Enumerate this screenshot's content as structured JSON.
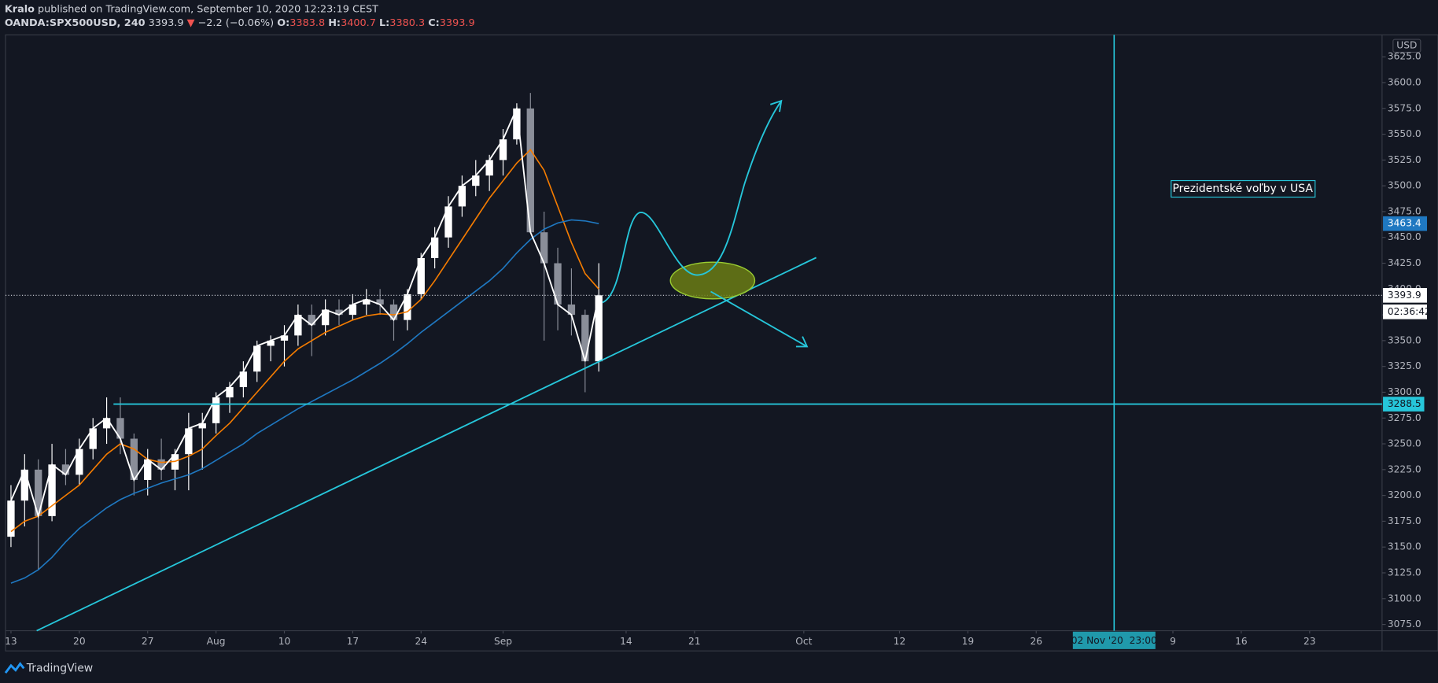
{
  "header": {
    "author": "Kralo",
    "published": "published on TradingView.com, September 10, 2020 12:23:19 CEST",
    "symbol": "OANDA:SPX500USD, 240",
    "last": "3393.9",
    "arrow": "▼",
    "change": "−2.2 (−0.06%)",
    "ohlc": [
      {
        "label": "O:",
        "value": "3383.8"
      },
      {
        "label": "H:",
        "value": "3400.7"
      },
      {
        "label": "L:",
        "value": "3380.3"
      },
      {
        "label": "C:",
        "value": "3393.9"
      }
    ]
  },
  "footer": {
    "brand": "TradingView"
  },
  "chart_data": {
    "type": "candlestick",
    "currency": "USD",
    "x": [
      0,
      1,
      2,
      3,
      4,
      5,
      6,
      7,
      8,
      9,
      10,
      11,
      12,
      13,
      14,
      15,
      16,
      17,
      18,
      19,
      20,
      21,
      22,
      23,
      24,
      25,
      26,
      27,
      28,
      29,
      30,
      31,
      32,
      33,
      34,
      35,
      36,
      37,
      38,
      39,
      40,
      41,
      42,
      43
    ],
    "open": [
      3160,
      3195,
      3225,
      3180,
      3230,
      3220,
      3245,
      3265,
      3275,
      3255,
      3215,
      3235,
      3225,
      3240,
      3265,
      3270,
      3295,
      3305,
      3320,
      3345,
      3350,
      3355,
      3375,
      3365,
      3380,
      3375,
      3385,
      3390,
      3385,
      3370,
      3395,
      3430,
      3450,
      3480,
      3500,
      3510,
      3525,
      3545,
      3575,
      3455,
      3425,
      3385,
      3375,
      3330
    ],
    "high": [
      3210,
      3240,
      3235,
      3250,
      3245,
      3255,
      3275,
      3295,
      3295,
      3260,
      3245,
      3255,
      3245,
      3280,
      3280,
      3300,
      3310,
      3330,
      3350,
      3355,
      3365,
      3385,
      3385,
      3390,
      3390,
      3395,
      3400,
      3400,
      3390,
      3400,
      3435,
      3460,
      3490,
      3510,
      3525,
      3530,
      3555,
      3580,
      3590,
      3475,
      3440,
      3420,
      3380,
      3425
    ],
    "low": [
      3150,
      3170,
      3128,
      3175,
      3210,
      3210,
      3235,
      3250,
      3240,
      3200,
      3200,
      3215,
      3205,
      3205,
      3225,
      3260,
      3280,
      3295,
      3310,
      3330,
      3325,
      3345,
      3335,
      3355,
      3365,
      3370,
      3375,
      3375,
      3350,
      3360,
      3390,
      3420,
      3440,
      3470,
      3490,
      3495,
      3510,
      3540,
      3460,
      3350,
      3360,
      3355,
      3300,
      3320
    ],
    "close": [
      3195,
      3225,
      3180,
      3230,
      3220,
      3245,
      3265,
      3275,
      3255,
      3215,
      3235,
      3225,
      3240,
      3265,
      3270,
      3295,
      3305,
      3320,
      3345,
      3350,
      3355,
      3375,
      3365,
      3380,
      3375,
      3385,
      3390,
      3385,
      3370,
      3395,
      3430,
      3450,
      3480,
      3500,
      3510,
      3525,
      3545,
      3575,
      3455,
      3425,
      3385,
      3375,
      3330,
      3393.9
    ],
    "color_up": "#ffffff",
    "color_down": "#8a8e99",
    "moving_averages": [
      {
        "color": "#f57c00",
        "values": [
          3165,
          3175,
          3180,
          3190,
          3200,
          3210,
          3225,
          3240,
          3250,
          3245,
          3235,
          3232,
          3233,
          3238,
          3245,
          3258,
          3270,
          3285,
          3300,
          3315,
          3330,
          3342,
          3350,
          3358,
          3364,
          3370,
          3374,
          3376,
          3375,
          3378,
          3390,
          3408,
          3428,
          3448,
          3468,
          3488,
          3505,
          3522,
          3535,
          3515,
          3480,
          3445,
          3415,
          3400
        ]
      },
      {
        "color": "#1f78c1",
        "values": [
          3115,
          3120,
          3128,
          3140,
          3155,
          3168,
          3178,
          3188,
          3196,
          3202,
          3207,
          3212,
          3216,
          3220,
          3226,
          3234,
          3242,
          3250,
          3260,
          3268,
          3276,
          3284,
          3291,
          3298,
          3305,
          3312,
          3320,
          3328,
          3337,
          3347,
          3358,
          3368,
          3378,
          3388,
          3398,
          3408,
          3420,
          3435,
          3448,
          3458,
          3464,
          3467,
          3466,
          3463.4
        ]
      }
    ],
    "horizontal_line": {
      "value": 3288.5,
      "color": "#26c6da"
    },
    "vertical_line": {
      "x": 80.7,
      "label": "02 Nov '20  23:00"
    },
    "countdown": "02:36:42",
    "annotation": "Prezidentské voľby v USA",
    "grid": false,
    "xlim": [
      -0.4,
      100.3
    ],
    "xticks": [
      {
        "value": 0,
        "label": "13"
      },
      {
        "value": 5,
        "label": "20"
      },
      {
        "value": 10,
        "label": "27"
      },
      {
        "value": 15,
        "label": "Aug"
      },
      {
        "value": 20,
        "label": "10"
      },
      {
        "value": 25,
        "label": "17"
      },
      {
        "value": 30,
        "label": "24"
      },
      {
        "value": 36,
        "label": "Sep"
      },
      {
        "value": 45,
        "label": "14"
      },
      {
        "value": 50,
        "label": "21"
      },
      {
        "value": 58,
        "label": "Oct"
      },
      {
        "value": 65,
        "label": "12"
      },
      {
        "value": 70,
        "label": "19"
      },
      {
        "value": 75,
        "label": "26"
      },
      {
        "value": 85,
        "label": "9"
      },
      {
        "value": 90,
        "label": "16"
      },
      {
        "value": 95,
        "label": "23"
      }
    ],
    "ylim": [
      3068.9,
      3646.3
    ],
    "yticks": [
      {
        "value": 3075,
        "label": "3075.0"
      },
      {
        "value": 3100,
        "label": "3100.0"
      },
      {
        "value": 3125,
        "label": "3125.0"
      },
      {
        "value": 3150,
        "label": "3150.0"
      },
      {
        "value": 3175,
        "label": "3175.0"
      },
      {
        "value": 3200,
        "label": "3200.0"
      },
      {
        "value": 3225,
        "label": "3225.0"
      },
      {
        "value": 3250,
        "label": "3250.0"
      },
      {
        "value": 3275,
        "label": "3275.0"
      },
      {
        "value": 3300,
        "label": "3300.0"
      },
      {
        "value": 3325,
        "label": "3325.0"
      },
      {
        "value": 3350,
        "label": "3350.0"
      },
      {
        "value": 3375,
        "label": "3375.0"
      },
      {
        "value": 3400,
        "label": "3400.0"
      },
      {
        "value": 3425,
        "label": "3425.0"
      },
      {
        "value": 3450,
        "label": "3450.0"
      },
      {
        "value": 3475,
        "label": "3475.0"
      },
      {
        "value": 3500,
        "label": "3500.0"
      },
      {
        "value": 3525,
        "label": "3525.0"
      },
      {
        "value": 3550,
        "label": "3550.0"
      },
      {
        "value": 3575,
        "label": "3575.0"
      },
      {
        "value": 3600,
        "label": "3600.0"
      },
      {
        "value": 3625,
        "label": "3625.0"
      }
    ]
  }
}
